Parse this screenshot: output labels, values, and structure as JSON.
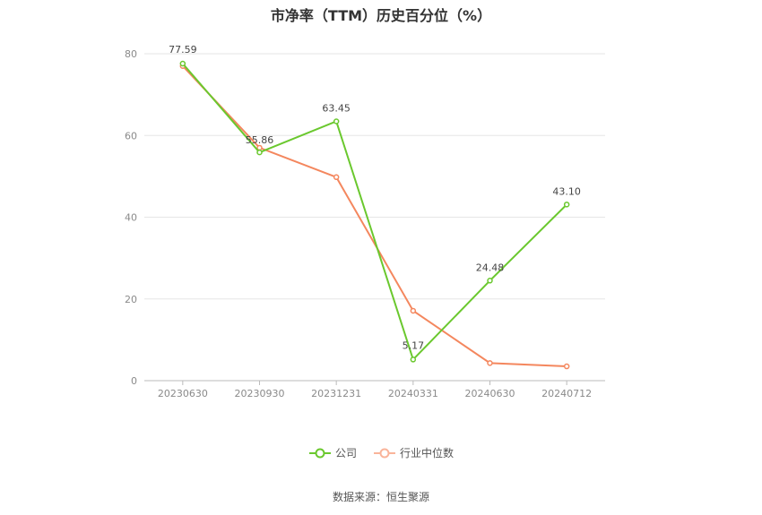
{
  "title": "市净率（TTM）历史百分位（%）",
  "source": "数据来源：恒生聚源",
  "colors": {
    "company": "#6ac82e",
    "industry": "#f4875e",
    "grid": "#e6e6e6",
    "axis": "#bbbbbb"
  },
  "chart_data": {
    "type": "line",
    "title": "市净率（TTM）历史百分位（%）",
    "categories": [
      "20230630",
      "20230930",
      "20231231",
      "20240331",
      "20240630",
      "20240712"
    ],
    "ylim": [
      0,
      80
    ],
    "yticks": [
      0,
      20,
      40,
      60,
      80
    ],
    "grid": true,
    "legend_position": "bottom",
    "series": [
      {
        "name": "公司",
        "color": "#6ac82e",
        "values": [
          77.59,
          55.86,
          63.45,
          5.17,
          24.48,
          43.1
        ],
        "labels": [
          "77.59",
          "55.86",
          "63.45",
          "5.17",
          "24.48",
          "43.10"
        ]
      },
      {
        "name": "行业中位数",
        "color": "#f4875e",
        "values": [
          77.0,
          57.0,
          49.8,
          17.1,
          4.3,
          3.5
        ]
      }
    ]
  }
}
